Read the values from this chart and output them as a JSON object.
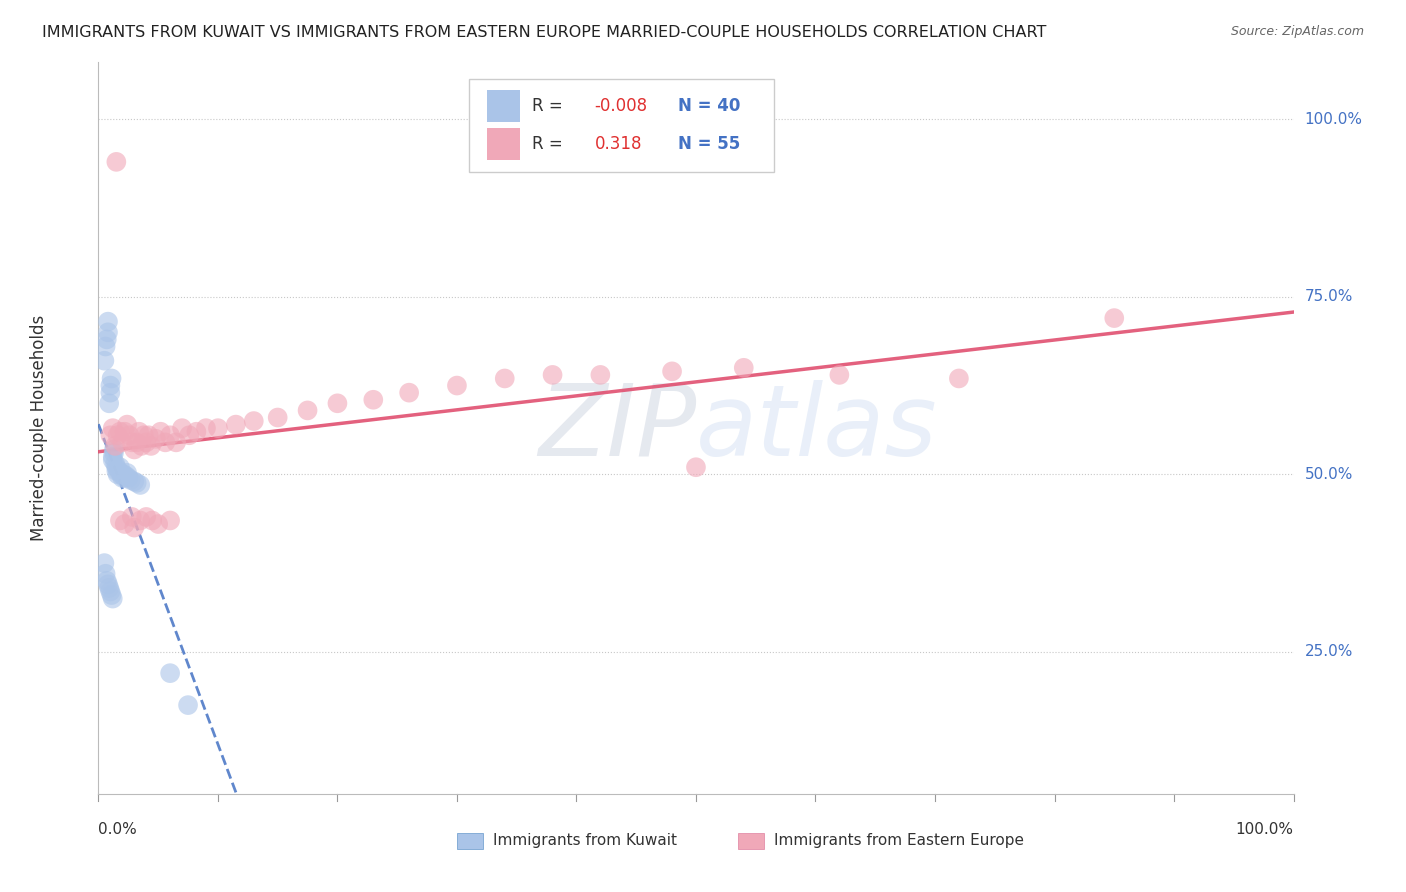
{
  "title": "IMMIGRANTS FROM KUWAIT VS IMMIGRANTS FROM EASTERN EUROPE MARRIED-COUPLE HOUSEHOLDS CORRELATION CHART",
  "source": "Source: ZipAtlas.com",
  "ylabel": "Married-couple Households",
  "legend_label1": "Immigrants from Kuwait",
  "legend_label2": "Immigrants from Eastern Europe",
  "r1": "-0.008",
  "n1": "40",
  "r2": "0.318",
  "n2": "55",
  "color_kuwait": "#aac4e8",
  "color_eastern": "#f0a8b8",
  "color_kuwait_line": "#4472c4",
  "color_eastern_line": "#e05070",
  "ytick_positions": [
    0.25,
    0.5,
    0.75,
    1.0
  ],
  "xlim": [
    0.0,
    1.0
  ],
  "ylim": [
    0.05,
    1.08
  ],
  "kuwait_x": [
    0.005,
    0.006,
    0.007,
    0.008,
    0.008,
    0.009,
    0.01,
    0.01,
    0.011,
    0.012,
    0.012,
    0.013,
    0.013,
    0.014,
    0.015,
    0.015,
    0.016,
    0.017,
    0.018,
    0.019,
    0.02,
    0.021,
    0.022,
    0.023,
    0.024,
    0.025,
    0.027,
    0.03,
    0.032,
    0.035,
    0.005,
    0.006,
    0.007,
    0.008,
    0.009,
    0.01,
    0.011,
    0.012,
    0.06,
    0.075
  ],
  "kuwait_y": [
    0.66,
    0.68,
    0.69,
    0.7,
    0.715,
    0.6,
    0.615,
    0.625,
    0.635,
    0.52,
    0.525,
    0.53,
    0.535,
    0.515,
    0.51,
    0.505,
    0.5,
    0.505,
    0.51,
    0.5,
    0.495,
    0.5,
    0.495,
    0.498,
    0.502,
    0.495,
    0.492,
    0.49,
    0.488,
    0.485,
    0.375,
    0.36,
    0.35,
    0.345,
    0.34,
    0.335,
    0.33,
    0.325,
    0.22,
    0.175
  ],
  "eastern_x": [
    0.01,
    0.012,
    0.014,
    0.016,
    0.018,
    0.02,
    0.022,
    0.024,
    0.026,
    0.028,
    0.03,
    0.032,
    0.034,
    0.036,
    0.038,
    0.04,
    0.042,
    0.044,
    0.048,
    0.052,
    0.056,
    0.06,
    0.065,
    0.07,
    0.076,
    0.082,
    0.09,
    0.1,
    0.115,
    0.13,
    0.15,
    0.175,
    0.2,
    0.23,
    0.26,
    0.3,
    0.34,
    0.38,
    0.42,
    0.48,
    0.54,
    0.62,
    0.72,
    0.5,
    0.85,
    0.018,
    0.022,
    0.028,
    0.03,
    0.035,
    0.04,
    0.045,
    0.05,
    0.06,
    0.015
  ],
  "eastern_y": [
    0.555,
    0.565,
    0.54,
    0.555,
    0.56,
    0.545,
    0.56,
    0.57,
    0.555,
    0.545,
    0.535,
    0.545,
    0.56,
    0.54,
    0.555,
    0.545,
    0.555,
    0.54,
    0.55,
    0.56,
    0.545,
    0.555,
    0.545,
    0.565,
    0.555,
    0.56,
    0.565,
    0.565,
    0.57,
    0.575,
    0.58,
    0.59,
    0.6,
    0.605,
    0.615,
    0.625,
    0.635,
    0.64,
    0.64,
    0.645,
    0.65,
    0.64,
    0.635,
    0.51,
    0.72,
    0.435,
    0.43,
    0.44,
    0.425,
    0.435,
    0.44,
    0.435,
    0.43,
    0.435,
    0.94
  ],
  "background_color": "#ffffff",
  "watermark_color": "#d0dff0",
  "watermark_alpha": 0.5
}
